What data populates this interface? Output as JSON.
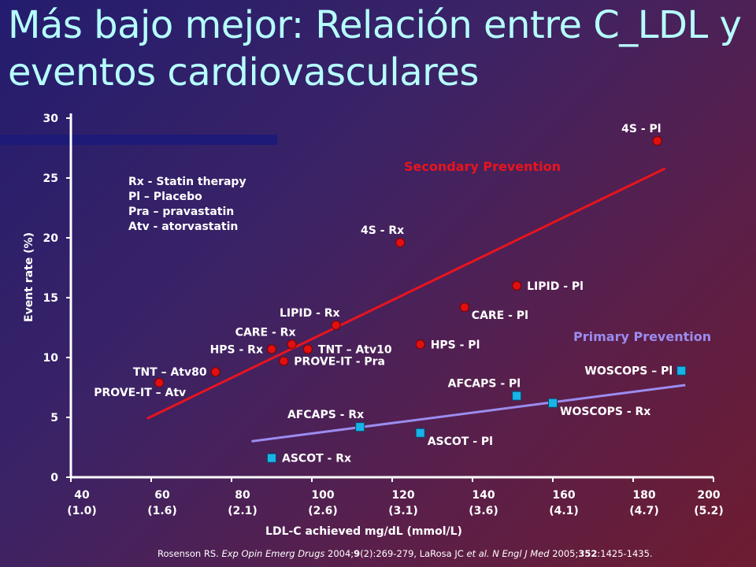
{
  "title": "Más bajo mejor:  Relación entre C_LDL y eventos cardiovasculares",
  "legend_lines": [
    "Rx - Statin therapy",
    "Pl – Placebo",
    "Pra – pravastatin",
    "Atv - atorvastatin"
  ],
  "citation_html": "Rosenson RS. <i>Exp Opin Emerg Drugs</i> 2004;<b>9</b>(2):269-279,  LaRosa JC <i>et al. N Engl J Med</i> 2005;<b>352</b>:1425-1435.",
  "colors": {
    "title": "#b6ffff",
    "secondary": "#e8141e",
    "primary": "#9b8cf0",
    "circle_marker": "#e01010",
    "square_marker": "#18b4e8"
  },
  "chart_data": {
    "type": "scatter",
    "xlabel": "LDL-C achieved mg/dL (mmol/L)",
    "ylabel": "Event rate (%)",
    "xlim": [
      40,
      200
    ],
    "ylim": [
      0,
      30
    ],
    "x_ticks": [
      {
        "value": 40,
        "line1": "40",
        "line2": "(1.0)"
      },
      {
        "value": 60,
        "line1": "60",
        "line2": "(1.6)"
      },
      {
        "value": 80,
        "line1": "80",
        "line2": "(2.1)"
      },
      {
        "value": 100,
        "line1": "100",
        "line2": "(2.6)"
      },
      {
        "value": 120,
        "line1": "120",
        "line2": "(3.1)"
      },
      {
        "value": 140,
        "line1": "140",
        "line2": "(3.6)"
      },
      {
        "value": 160,
        "line1": "160",
        "line2": "(4.1)"
      },
      {
        "value": 180,
        "line1": "180",
        "line2": "(4.7)"
      },
      {
        "value": 200,
        "line1": "200",
        "line2": "(5.2)"
      }
    ],
    "y_ticks": [
      0,
      5,
      10,
      15,
      20,
      25,
      30
    ],
    "grid": false,
    "series": [
      {
        "name": "Secondary Prevention",
        "marker": "circle",
        "trend": [
          [
            59,
            4.9
          ],
          [
            188,
            25.8
          ]
        ],
        "points": [
          {
            "label": "4S - Pl",
            "x": 186,
            "y": 28.1,
            "anchor": "above-left"
          },
          {
            "label": "4S - Rx",
            "x": 122,
            "y": 19.6,
            "anchor": "above-left"
          },
          {
            "label": "LIPID - Pl",
            "x": 151,
            "y": 16.0,
            "anchor": "right"
          },
          {
            "label": "CARE - Pl",
            "x": 138,
            "y": 14.2,
            "anchor": "below-right"
          },
          {
            "label": "LIPID - Rx",
            "x": 106,
            "y": 12.7,
            "anchor": "above-left"
          },
          {
            "label": "CARE - Rx",
            "x": 95,
            "y": 11.1,
            "anchor": "above-left"
          },
          {
            "label": "HPS - Rx",
            "x": 90,
            "y": 10.7,
            "anchor": "left"
          },
          {
            "label": "TNT – Atv10",
            "x": 99,
            "y": 10.7,
            "anchor": "right"
          },
          {
            "label": "HPS - Pl",
            "x": 127,
            "y": 11.1,
            "anchor": "right"
          },
          {
            "label": "PROVE-IT - Pra",
            "x": 93,
            "y": 9.7,
            "anchor": "right"
          },
          {
            "label": "TNT – Atv80",
            "x": 76,
            "y": 8.8,
            "anchor": "left"
          },
          {
            "label": "PROVE-IT – Atv",
            "x": 62,
            "y": 7.9,
            "anchor": "below-left"
          }
        ]
      },
      {
        "name": "Primary Prevention",
        "marker": "square",
        "trend": [
          [
            85,
            3.0
          ],
          [
            193,
            7.7
          ]
        ],
        "points": [
          {
            "label": "WOSCOPS – Pl",
            "x": 192,
            "y": 8.9,
            "anchor": "left"
          },
          {
            "label": "AFCAPS - Pl",
            "x": 151,
            "y": 6.8,
            "anchor": "above-left"
          },
          {
            "label": "WOSCOPS - Rx",
            "x": 160,
            "y": 6.2,
            "anchor": "below-right"
          },
          {
            "label": "AFCAPS - Rx",
            "x": 112,
            "y": 4.2,
            "anchor": "above-left"
          },
          {
            "label": "ASCOT - Pl",
            "x": 127,
            "y": 3.7,
            "anchor": "below-right"
          },
          {
            "label": "ASCOT - Rx",
            "x": 90,
            "y": 1.6,
            "anchor": "right"
          }
        ]
      }
    ]
  }
}
